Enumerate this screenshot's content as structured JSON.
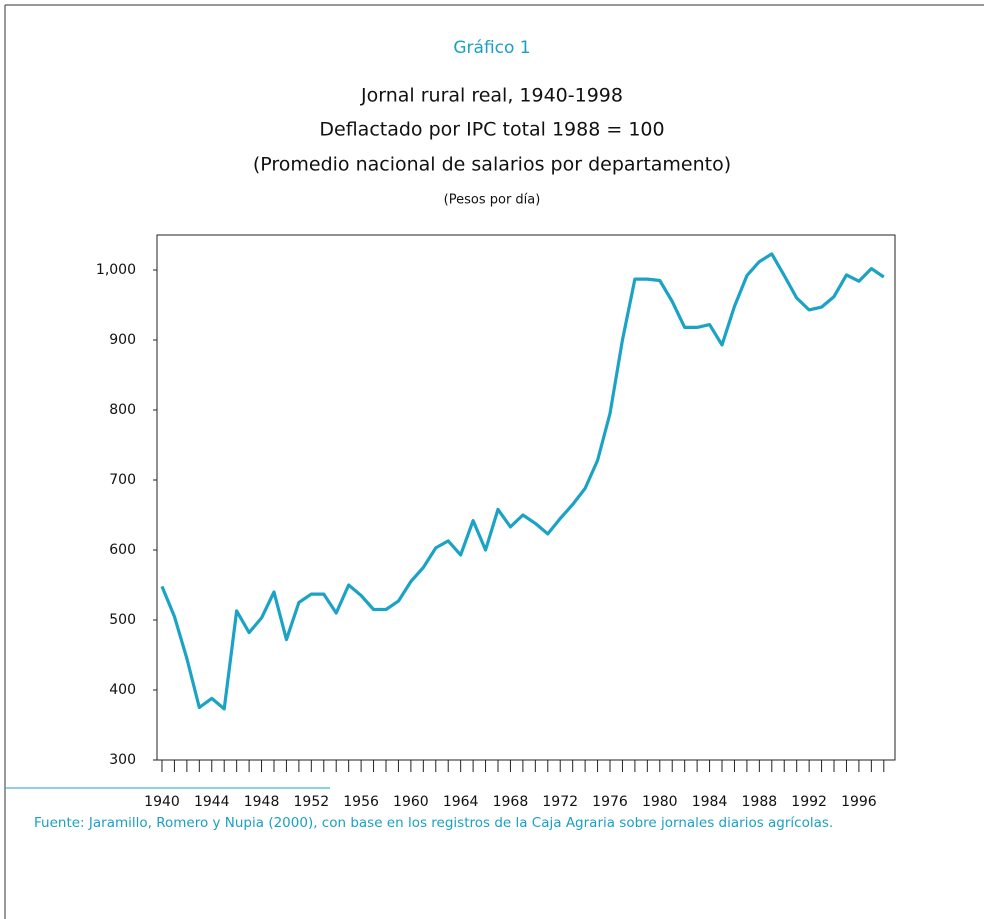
{
  "chart_data": {
    "type": "line",
    "title": "Gráfico 1",
    "subtitle": [
      "Jornal rural real, 1940-1998",
      "Deflactado por IPC total 1988 = 100",
      "(Promedio nacional de salarios por departamento)"
    ],
    "y_label": "(Pesos por día)",
    "source": "Fuente: Jaramillo, Romero y Nupia (2000), con base en los registros de la Caja Agraria sobre jornales diarios agrícolas.",
    "x": [
      1940,
      1941,
      1942,
      1943,
      1944,
      1945,
      1946,
      1947,
      1948,
      1949,
      1950,
      1951,
      1952,
      1953,
      1954,
      1955,
      1956,
      1957,
      1958,
      1959,
      1960,
      1961,
      1962,
      1963,
      1964,
      1965,
      1966,
      1967,
      1968,
      1969,
      1970,
      1971,
      1972,
      1973,
      1974,
      1975,
      1976,
      1977,
      1978,
      1979,
      1980,
      1981,
      1982,
      1983,
      1984,
      1985,
      1986,
      1987,
      1988,
      1989,
      1990,
      1991,
      1992,
      1993,
      1994,
      1995,
      1996,
      1997,
      1998
    ],
    "series": [
      {
        "name": "Jornal rural real",
        "color": "#1ba3c6",
        "values": [
          548,
          505,
          445,
          375,
          388,
          373,
          513,
          482,
          503,
          540,
          472,
          525,
          537,
          537,
          510,
          550,
          535,
          515,
          515,
          527,
          555,
          575,
          603,
          613,
          593,
          642,
          600,
          658,
          633,
          650,
          638,
          623,
          645,
          665,
          688,
          728,
          795,
          900,
          987,
          987,
          985,
          955,
          918,
          918,
          922,
          893,
          948,
          992,
          1012,
          1023,
          992,
          960,
          943,
          947,
          962,
          993,
          984,
          1002,
          990
        ]
      }
    ],
    "xlim": [
      1939.6,
      1998.9
    ],
    "xticks": [
      1940,
      1944,
      1948,
      1952,
      1956,
      1960,
      1964,
      1968,
      1972,
      1976,
      1980,
      1984,
      1988,
      1992,
      1996
    ],
    "ylim": [
      300,
      1050
    ],
    "yticks": [
      300,
      400,
      500,
      600,
      700,
      800,
      900,
      {
        "value": 1000,
        "label": "1,000"
      }
    ],
    "grid": false
  }
}
